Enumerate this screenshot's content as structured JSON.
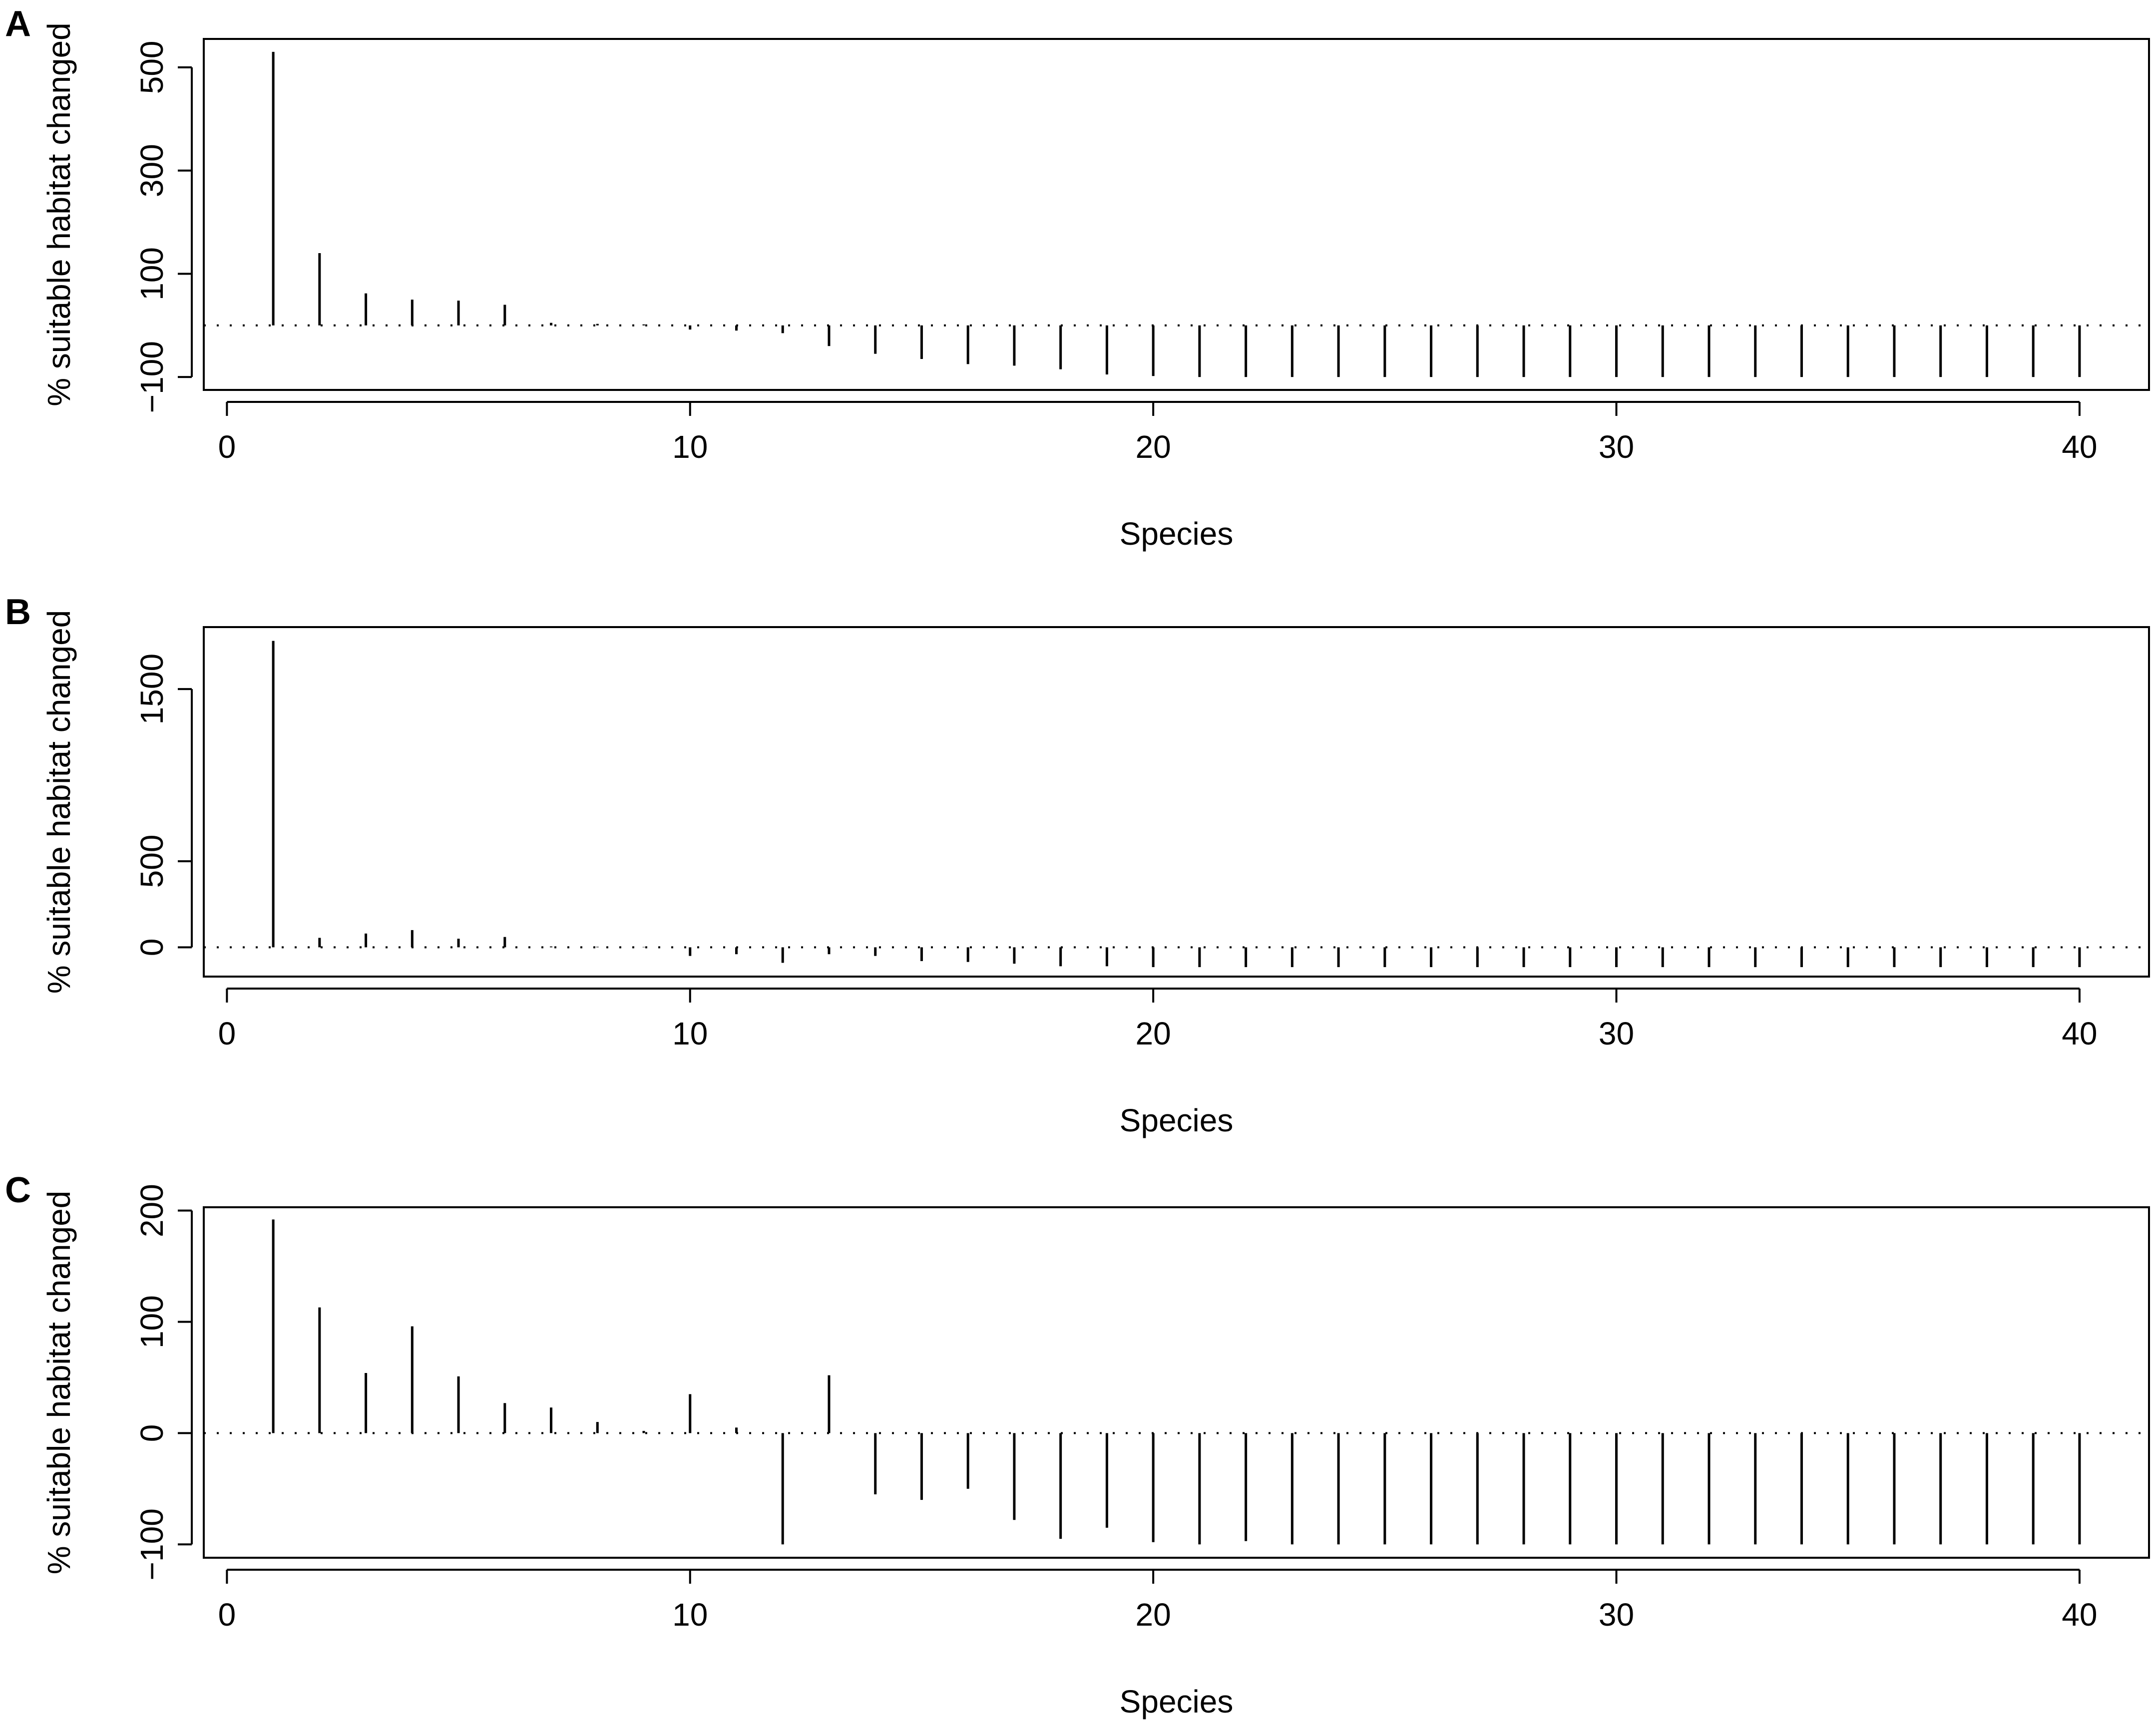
{
  "chart_data": [
    {
      "type": "bar",
      "panel_label": "A",
      "xlabel": "Species",
      "ylabel": "% suitable habitat changed",
      "xlim": [
        -0.5,
        41.5
      ],
      "ylim": [
        -125,
        555
      ],
      "x_ticks": [
        "0",
        "10",
        "20",
        "30",
        "40"
      ],
      "y_ticks": [
        "500",
        "300",
        "100",
        "−100"
      ],
      "reference_line": 0,
      "x": [
        1,
        2,
        3,
        4,
        5,
        6,
        7,
        8,
        9,
        10,
        11,
        12,
        13,
        14,
        15,
        16,
        17,
        18,
        19,
        20,
        21,
        22,
        23,
        24,
        25,
        26,
        27,
        28,
        29,
        30,
        31,
        32,
        33,
        34,
        35,
        36,
        37,
        38,
        39,
        40
      ],
      "values": [
        530,
        140,
        62,
        50,
        48,
        40,
        5,
        3,
        2,
        -8,
        -10,
        -15,
        -40,
        -55,
        -65,
        -75,
        -78,
        -85,
        -95,
        -98,
        -100,
        -100,
        -100,
        -100,
        -100,
        -100,
        -100,
        -100,
        -100,
        -100,
        -100,
        -100,
        -100,
        -100,
        -100,
        -100,
        -100,
        -100,
        -100,
        -100
      ]
    },
    {
      "type": "bar",
      "panel_label": "B",
      "xlabel": "Species",
      "ylabel": "% suitable habitat changed",
      "xlim": [
        -0.5,
        41.5
      ],
      "ylim": [
        -170,
        1860
      ],
      "x_ticks": [
        "0",
        "10",
        "20",
        "30",
        "40"
      ],
      "y_ticks": [
        "1500",
        "500",
        "0"
      ],
      "reference_line": 0,
      "x": [
        1,
        2,
        3,
        4,
        5,
        6,
        7,
        8,
        9,
        10,
        11,
        12,
        13,
        14,
        15,
        16,
        17,
        18,
        19,
        20,
        21,
        22,
        23,
        24,
        25,
        26,
        27,
        28,
        29,
        30,
        31,
        32,
        33,
        34,
        35,
        36,
        37,
        38,
        39,
        40
      ],
      "values": [
        1780,
        55,
        80,
        100,
        50,
        60,
        5,
        3,
        2,
        -50,
        -40,
        -90,
        -40,
        -50,
        -80,
        -85,
        -95,
        -110,
        -110,
        -115,
        -115,
        -115,
        -115,
        -115,
        -115,
        -115,
        -115,
        -115,
        -115,
        -115,
        -115,
        -115,
        -115,
        -115,
        -115,
        -115,
        -115,
        -115,
        -115,
        -115
      ]
    },
    {
      "type": "bar",
      "panel_label": "C",
      "xlabel": "Species",
      "ylabel": "% suitable habitat changed",
      "xlim": [
        -0.5,
        41.5
      ],
      "ylim": [
        -112,
        203
      ],
      "x_ticks": [
        "0",
        "10",
        "20",
        "30",
        "40"
      ],
      "y_ticks": [
        "200",
        "100",
        "0",
        "−100"
      ],
      "reference_line": 0,
      "x": [
        1,
        2,
        3,
        4,
        5,
        6,
        7,
        8,
        9,
        10,
        11,
        12,
        13,
        14,
        15,
        16,
        17,
        18,
        19,
        20,
        21,
        22,
        23,
        24,
        25,
        26,
        27,
        28,
        29,
        30,
        31,
        32,
        33,
        34,
        35,
        36,
        37,
        38,
        39,
        40
      ],
      "values": [
        192,
        113,
        54,
        96,
        51,
        27,
        23,
        10,
        2,
        35,
        5,
        -100,
        52,
        -55,
        -60,
        -50,
        -78,
        -95,
        -85,
        -98,
        -100,
        -97,
        -100,
        -100,
        -100,
        -100,
        -100,
        -100,
        -100,
        -100,
        -100,
        -100,
        -100,
        -100,
        -100,
        -100,
        -100,
        -100,
        -100,
        -100
      ]
    }
  ]
}
